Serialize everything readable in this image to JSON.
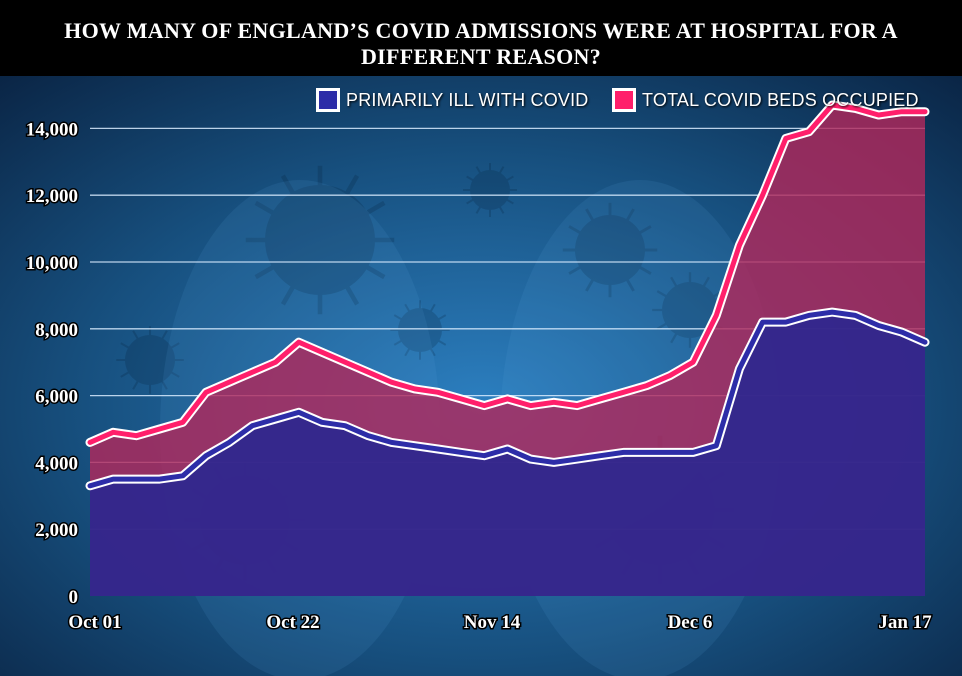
{
  "chart_data": {
    "type": "area",
    "title": "HOW MANY OF ENGLAND’S COVID ADMISSIONS WERE AT HOSPITAL FOR A DIFFERENT REASON?",
    "x_tick_labels": [
      "Oct 01",
      "Oct 22",
      "Nov 14",
      "Dec 6",
      "Jan 17"
    ],
    "x_range": [
      "2021-10-01",
      "2022-01-17"
    ],
    "ylim": [
      0,
      15000
    ],
    "y_ticks": [
      0,
      2000,
      4000,
      6000,
      8000,
      10000,
      12000,
      14000
    ],
    "y_tick_labels": [
      "0",
      "2,000",
      "4,000",
      "6,000",
      "8,000",
      "10,000",
      "12,000",
      "14,000"
    ],
    "grid": true,
    "legend_position": "top-right",
    "series": [
      {
        "name": "TOTAL COVID BEDS OCCUPIED",
        "color": "#ff1f6b",
        "fill": "#b0285c",
        "x": [
          "2021-10-01",
          "2021-10-04",
          "2021-10-07",
          "2021-10-10",
          "2021-10-13",
          "2021-10-16",
          "2021-10-19",
          "2021-10-22",
          "2021-10-25",
          "2021-10-28",
          "2021-10-31",
          "2021-11-03",
          "2021-11-06",
          "2021-11-09",
          "2021-11-12",
          "2021-11-15",
          "2021-11-18",
          "2021-11-21",
          "2021-11-24",
          "2021-11-27",
          "2021-11-30",
          "2021-12-03",
          "2021-12-06",
          "2021-12-09",
          "2021-12-12",
          "2021-12-15",
          "2021-12-18",
          "2021-12-21",
          "2021-12-24",
          "2021-12-27",
          "2021-12-30",
          "2022-01-02",
          "2022-01-05",
          "2022-01-08",
          "2022-01-11",
          "2022-01-14",
          "2022-01-17"
        ],
        "values": [
          4600,
          4900,
          4800,
          5000,
          5200,
          6100,
          6400,
          6700,
          7000,
          7600,
          7300,
          7000,
          6700,
          6400,
          6200,
          6100,
          5900,
          5700,
          5900,
          5700,
          5800,
          5700,
          5900,
          6100,
          6300,
          6600,
          7000,
          8400,
          10500,
          12000,
          13700,
          13900,
          14700,
          14600,
          14400,
          14500,
          14500
        ]
      },
      {
        "name": "PRIMARILY ILL WITH COVID",
        "color": "#2d2da8",
        "fill": "#2a2790",
        "x": [
          "2021-10-01",
          "2021-10-04",
          "2021-10-07",
          "2021-10-10",
          "2021-10-13",
          "2021-10-16",
          "2021-10-19",
          "2021-10-22",
          "2021-10-25",
          "2021-10-28",
          "2021-10-31",
          "2021-11-03",
          "2021-11-06",
          "2021-11-09",
          "2021-11-12",
          "2021-11-15",
          "2021-11-18",
          "2021-11-21",
          "2021-11-24",
          "2021-11-27",
          "2021-11-30",
          "2021-12-03",
          "2021-12-06",
          "2021-12-09",
          "2021-12-12",
          "2021-12-15",
          "2021-12-18",
          "2021-12-21",
          "2021-12-24",
          "2021-12-27",
          "2021-12-30",
          "2022-01-02",
          "2022-01-05",
          "2022-01-08",
          "2022-01-11",
          "2022-01-14",
          "2022-01-17"
        ],
        "values": [
          3300,
          3500,
          3500,
          3500,
          3600,
          4200,
          4600,
          5100,
          5300,
          5500,
          5200,
          5100,
          4800,
          4600,
          4500,
          4400,
          4300,
          4200,
          4400,
          4100,
          4000,
          4100,
          4200,
          4300,
          4300,
          4300,
          4300,
          4500,
          6800,
          8200,
          8200,
          8400,
          8500,
          8400,
          8100,
          7900,
          7600
        ]
      }
    ]
  }
}
